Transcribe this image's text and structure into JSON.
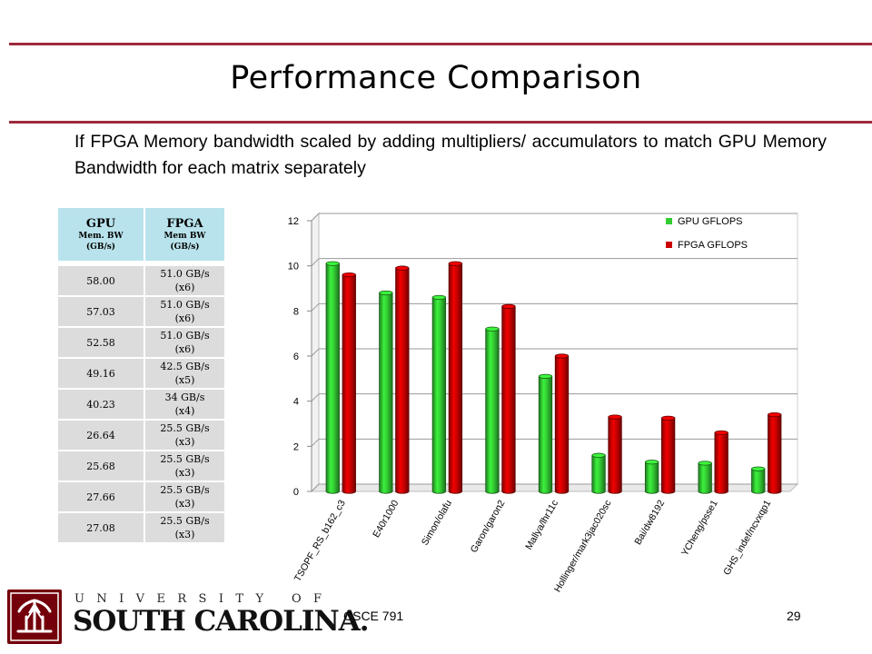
{
  "slide": {
    "title": "Performance Comparison",
    "subtitle": "If FPGA Memory bandwidth scaled by adding multipliers/ accumulators to match GPU Memory Bandwidth for each matrix separately"
  },
  "table": {
    "headers": [
      {
        "main": "GPU",
        "sub1": "Mem. BW",
        "sub2": "(GB/s)"
      },
      {
        "main": "FPGA",
        "sub1": "Mem BW",
        "sub2": "(GB/s)"
      }
    ],
    "rows": [
      {
        "gpu": "58.00",
        "fpga1": "51.0 GB/s",
        "fpga2": "(x6)"
      },
      {
        "gpu": "57.03",
        "fpga1": "51.0 GB/s",
        "fpga2": "(x6)"
      },
      {
        "gpu": "52.58",
        "fpga1": "51.0 GB/s",
        "fpga2": "(x6)"
      },
      {
        "gpu": "49.16",
        "fpga1": "42.5 GB/s",
        "fpga2": "(x5)"
      },
      {
        "gpu": "40.23",
        "fpga1": "34 GB/s",
        "fpga2": "(x4)"
      },
      {
        "gpu": "26.64",
        "fpga1": "25.5 GB/s",
        "fpga2": "(x3)"
      },
      {
        "gpu": "25.68",
        "fpga1": "25.5 GB/s",
        "fpga2": "(x3)"
      },
      {
        "gpu": "27.66",
        "fpga1": "25.5 GB/s",
        "fpga2": "(x3)"
      },
      {
        "gpu": "27.08",
        "fpga1": "25.5 GB/s",
        "fpga2": "(x3)"
      }
    ]
  },
  "chart_data": {
    "type": "bar",
    "categories": [
      "TSOPF_RS_b162_c3",
      "E40r1000",
      "Simon/olafu",
      "Garon/garon2",
      "Mallya/lhr11c",
      "Hollinger/mark3jac020sc",
      "Bai/dw8192",
      "YCheng/psse1",
      "GHS_indef/ncvxqp1"
    ],
    "series": [
      {
        "name": "GPU GFLOPS",
        "color": "#33cc33",
        "values": [
          10.1,
          8.8,
          8.6,
          7.2,
          5.1,
          1.6,
          1.3,
          1.25,
          1.0
        ]
      },
      {
        "name": "FPGA GFLOPS",
        "color": "#cc0000",
        "values": [
          9.6,
          9.9,
          10.1,
          8.2,
          6.0,
          3.3,
          3.25,
          2.6,
          3.4
        ]
      }
    ],
    "ylim": [
      0,
      12
    ],
    "yticks": [
      0,
      2,
      4,
      6,
      8,
      10,
      12
    ],
    "grid": true,
    "legend_position": "top-right",
    "style": "3d-cylinder"
  },
  "footer": {
    "course": "CSCE 791",
    "page": "29",
    "logo_upper": "UNIVERSITY OF",
    "logo_lower": "SOUTH CAROLINA."
  }
}
